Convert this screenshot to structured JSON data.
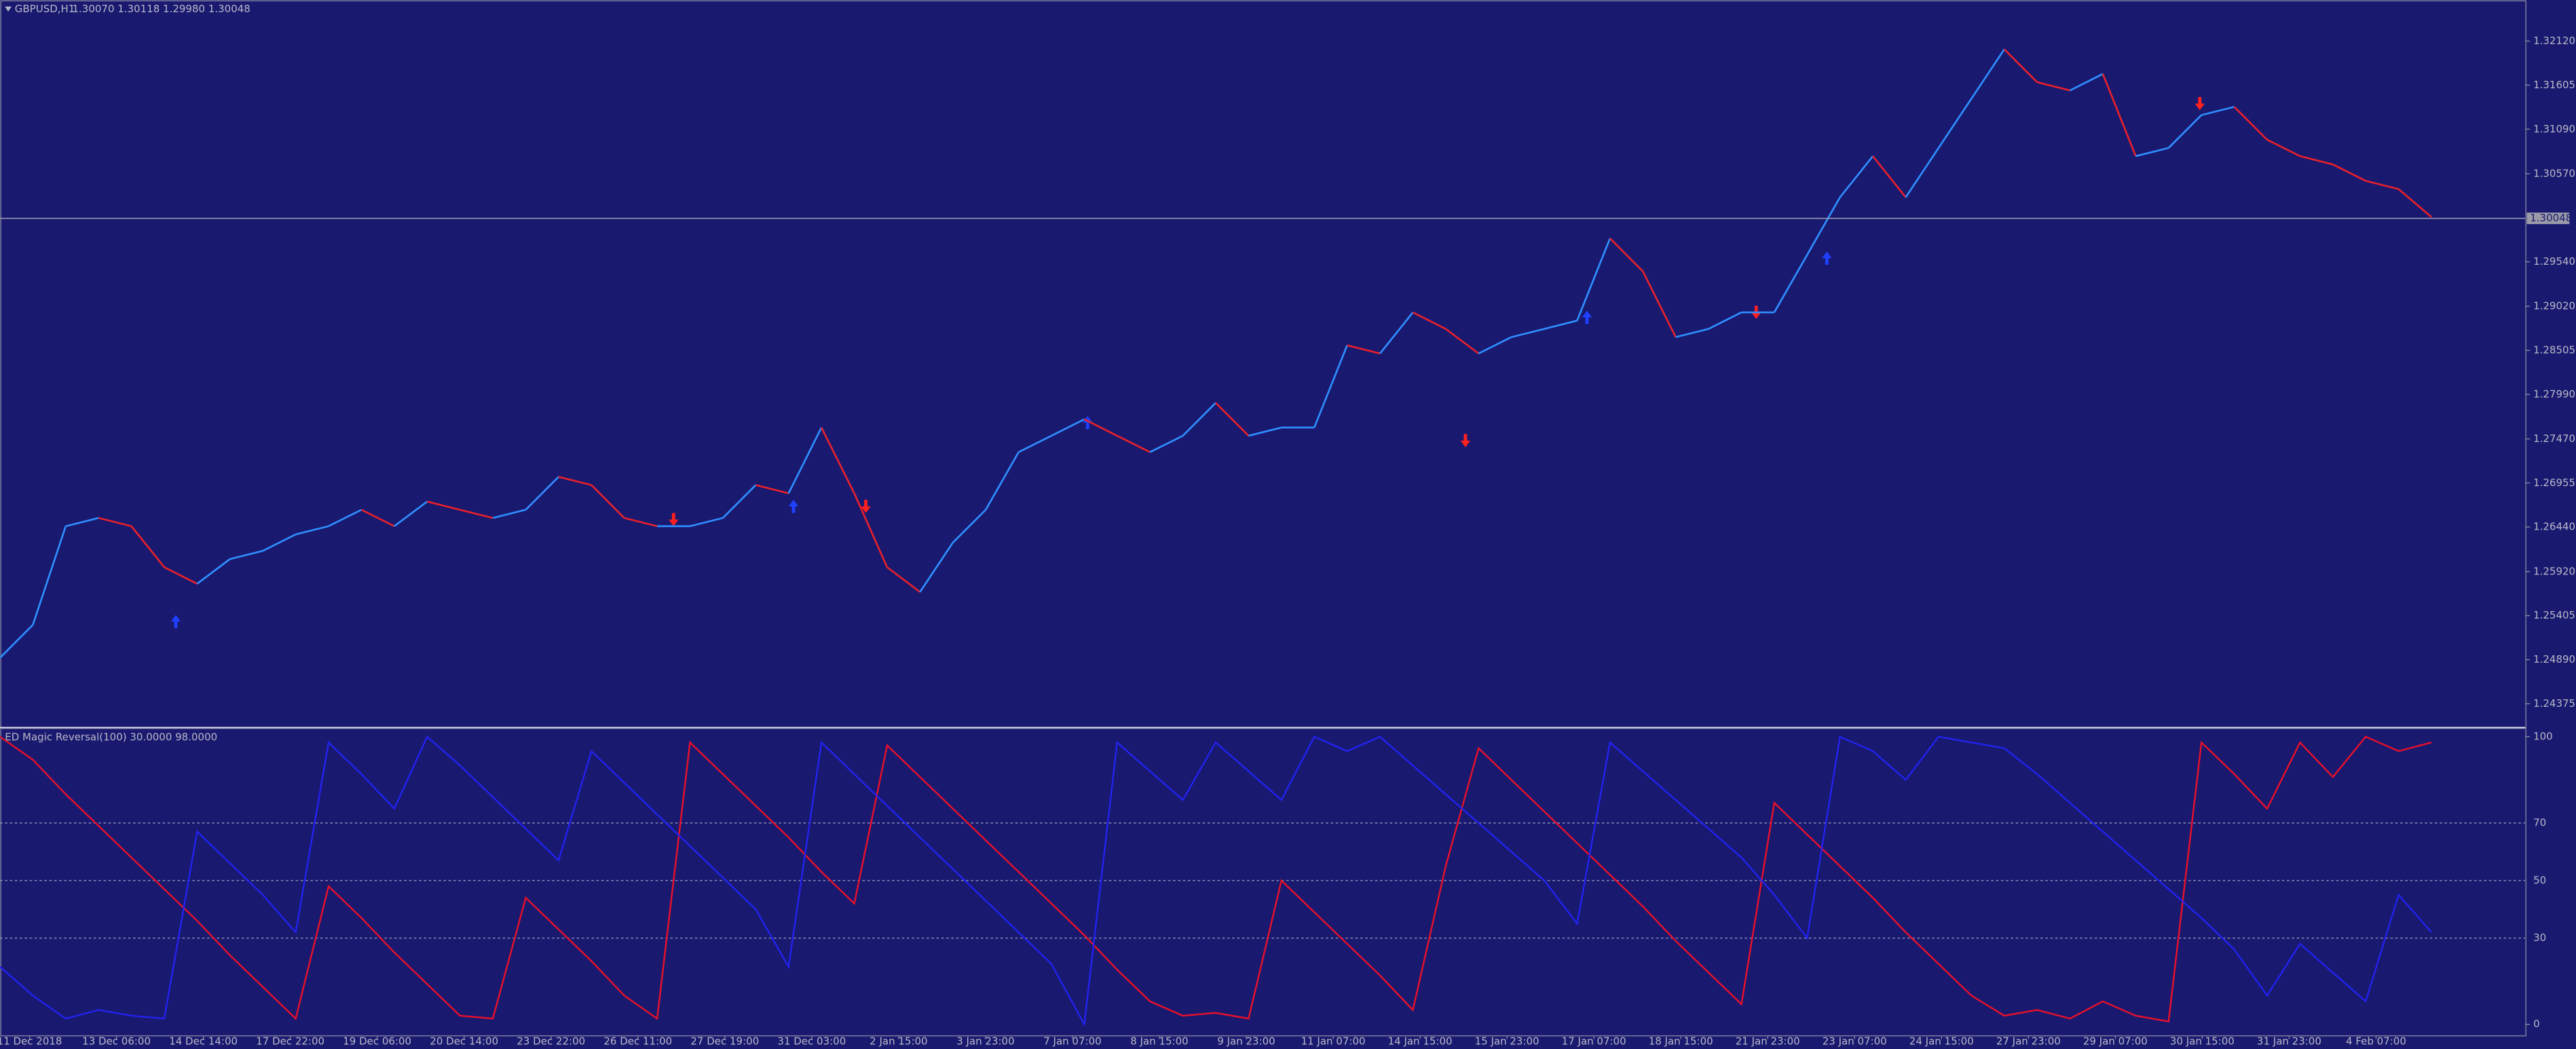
{
  "header": {
    "symbol": "GBPUSD,H1",
    "ohlc": "1.30070 1.30118 1.29980 1.30048"
  },
  "price_chart": {
    "type": "line",
    "values": [
      1.24912,
      1.25297,
      1.2645,
      1.26546,
      1.2645,
      1.2597,
      1.25777,
      1.26066,
      1.26162,
      1.26354,
      1.2645,
      1.26642,
      1.2645,
      1.26738,
      1.26642,
      1.26546,
      1.26642,
      1.27027,
      1.26931,
      1.26546,
      1.2645,
      1.2645,
      1.26546,
      1.26931,
      1.26834,
      1.27603,
      1.26834,
      1.2597,
      1.25681,
      1.26258,
      1.26642,
      1.27315,
      1.27507,
      1.27699,
      1.27507,
      1.27315,
      1.27507,
      1.27892,
      1.27507,
      1.27603,
      1.27603,
      1.28564,
      1.28468,
      1.28949,
      1.28756,
      1.28468,
      1.2866,
      1.28756,
      1.28853,
      1.29814,
      1.29429,
      1.2866,
      1.28756,
      1.28949,
      1.28949,
      1.29621,
      1.30294,
      1.30775,
      1.30294,
      1.30871,
      1.31447,
      1.32024,
      1.31639,
      1.31543,
      1.31736,
      1.30775,
      1.30871,
      1.31255,
      1.31351,
      1.30967,
      1.30775,
      1.30678,
      1.30486,
      1.3039,
      1.30063
    ],
    "up_color": "#2f8fff",
    "down_color": "#e8202a",
    "ylim": [
      1.24106,
      1.326
    ],
    "yticks": [
      {
        "value": 1.3212,
        "label": "1.32120"
      },
      {
        "value": 1.31605,
        "label": "1.31605"
      },
      {
        "value": 1.3109,
        "label": "1.31090"
      },
      {
        "value": 1.3057,
        "label": "1.30570"
      },
      {
        "value": 1.2954,
        "label": "1.29540"
      },
      {
        "value": 1.2902,
        "label": "1.29020"
      },
      {
        "value": 1.28505,
        "label": "1.28505"
      },
      {
        "value": 1.2799,
        "label": "1.27990"
      },
      {
        "value": 1.2747,
        "label": "1.27470"
      },
      {
        "value": 1.26955,
        "label": "1.26955"
      },
      {
        "value": 1.2644,
        "label": "1.26440"
      },
      {
        "value": 1.2592,
        "label": "1.25920"
      },
      {
        "value": 1.25405,
        "label": "1.25405"
      },
      {
        "value": 1.2489,
        "label": "1.24890"
      },
      {
        "value": 1.24375,
        "label": "1.24375"
      }
    ],
    "current_price": {
      "value": 1.30048,
      "label": "1.30048"
    }
  },
  "indicator": {
    "type": "line",
    "title": "ED Magic Reversal(100) 30.0000 98.0000",
    "series": [
      {
        "color": "#e8102a",
        "values": [
          100,
          92,
          80,
          69,
          58,
          47,
          36,
          24,
          13,
          2,
          48,
          37,
          25,
          14,
          3,
          2,
          44,
          33,
          22,
          10,
          2,
          98,
          87,
          76,
          65,
          53,
          42,
          97,
          86,
          75,
          64,
          53,
          42,
          31,
          19,
          8,
          3,
          4,
          2,
          50,
          39,
          28,
          17,
          5,
          55,
          96,
          85,
          74,
          63,
          52,
          41,
          29,
          18,
          7,
          77,
          66,
          55,
          44,
          32,
          21,
          10,
          3,
          5,
          2,
          8,
          3,
          1,
          98,
          87,
          75,
          98,
          86,
          100,
          95,
          98
        ]
      },
      {
        "color": "#2222ee",
        "values": [
          20,
          10,
          2,
          5,
          3,
          2,
          67,
          56,
          45,
          32,
          98,
          87,
          75,
          100,
          90,
          79,
          68,
          57,
          95,
          84,
          73,
          62,
          51,
          40,
          20,
          98,
          87,
          76,
          65,
          54,
          43,
          32,
          21,
          0,
          98,
          88,
          78,
          98,
          88,
          78,
          100,
          95,
          100,
          90,
          80,
          70,
          60,
          50,
          35,
          98,
          88,
          78,
          68,
          58,
          45,
          30,
          100,
          95,
          85,
          100,
          98,
          96,
          87,
          77,
          67,
          57,
          47,
          37,
          26,
          10,
          28,
          18,
          8,
          45,
          32
        ]
      }
    ],
    "ylim": [
      -4,
      102.9
    ],
    "yticks": [
      100,
      70,
      50,
      30,
      0
    ]
  },
  "time_axis": {
    "labels": [
      "11 Dec 2018",
      "13 Dec 06:00",
      "14 Dec 14:00",
      "17 Dec 22:00",
      "19 Dec 06:00",
      "20 Dec 14:00",
      "23 Dec 22:00",
      "26 Dec 11:00",
      "27 Dec 19:00",
      "31 Dec 03:00",
      "2 Jan 15:00",
      "3 Jan 23:00",
      "7 Jan 07:00",
      "8 Jan 15:00",
      "9 Jan 23:00",
      "11 Jan 07:00",
      "14 Jan 15:00",
      "15 Jan 23:00",
      "17 Jan 07:00",
      "18 Jan 15:00",
      "21 Jan 23:00",
      "23 Jan 07:00",
      "24 Jan 15:00",
      "27 Jan 23:00",
      "29 Jan 07:00",
      "30 Jan 15:00",
      "31 Jan 23:00",
      "4 Feb 07:00"
    ]
  }
}
